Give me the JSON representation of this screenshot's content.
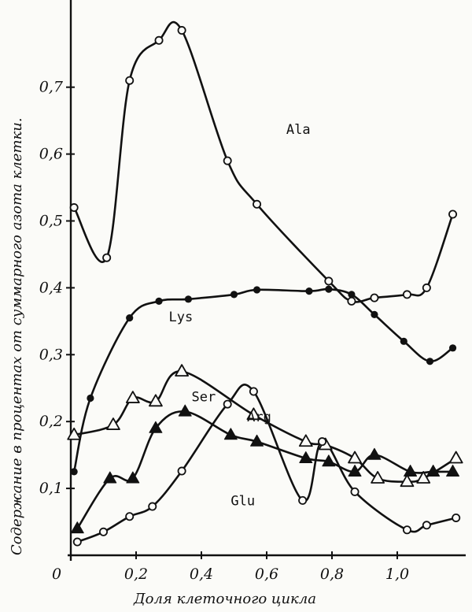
{
  "chart_data": {
    "type": "scatter",
    "xlabel": "Доля клеточного цикла",
    "ylabel": "Содержание в процентах от суммарного азота клетки.",
    "xlim": [
      0,
      1.2
    ],
    "ylim": [
      0,
      0.8
    ],
    "x_ticks": [
      {
        "value": 0,
        "label": "0"
      },
      {
        "value": 0.2,
        "label": "0,2"
      },
      {
        "value": 0.4,
        "label": "0,4"
      },
      {
        "value": 0.6,
        "label": "0,6"
      },
      {
        "value": 0.8,
        "label": "0,8"
      },
      {
        "value": 1.0,
        "label": "1,0"
      }
    ],
    "y_ticks": [
      {
        "value": 0.1,
        "label": "0,1"
      },
      {
        "value": 0.2,
        "label": "0,2"
      },
      {
        "value": 0.3,
        "label": "0,3"
      },
      {
        "value": 0.4,
        "label": "0,4"
      },
      {
        "value": 0.5,
        "label": "0,5"
      },
      {
        "value": 0.6,
        "label": "0,6"
      },
      {
        "value": 0.7,
        "label": "0,7"
      }
    ],
    "series": [
      {
        "name": "Ala",
        "marker": "open-circle",
        "x": [
          0.01,
          0.11,
          0.18,
          0.27,
          0.34,
          0.48,
          0.57,
          0.79,
          0.86,
          0.93,
          1.03,
          1.09,
          1.17
        ],
        "y": [
          0.52,
          0.445,
          0.71,
          0.77,
          0.785,
          0.59,
          0.525,
          0.41,
          0.38,
          0.385,
          0.39,
          0.4,
          0.51
        ],
        "label_at": [
          0.66,
          0.63
        ]
      },
      {
        "name": "Lys",
        "marker": "filled-circle",
        "x": [
          0.01,
          0.06,
          0.18,
          0.27,
          0.36,
          0.5,
          0.57,
          0.73,
          0.79,
          0.86,
          0.93,
          1.02,
          1.1,
          1.17
        ],
        "y": [
          0.125,
          0.235,
          0.355,
          0.38,
          0.383,
          0.39,
          0.397,
          0.395,
          0.398,
          0.39,
          0.36,
          0.32,
          0.29,
          0.31
        ],
        "label_at": [
          0.3,
          0.35
        ]
      },
      {
        "name": "Ser",
        "marker": "open-triangle",
        "x": [
          0.01,
          0.13,
          0.19,
          0.26,
          0.34,
          0.56,
          0.72,
          0.78,
          0.87,
          0.94,
          1.03,
          1.08,
          1.18
        ],
        "y": [
          0.18,
          0.195,
          0.235,
          0.23,
          0.275,
          0.21,
          0.17,
          0.165,
          0.145,
          0.115,
          0.11,
          0.115,
          0.145
        ],
        "label_at": [
          0.37,
          0.23
        ]
      },
      {
        "name": "Arg",
        "marker": "filled-triangle",
        "x": [
          0.02,
          0.12,
          0.19,
          0.26,
          0.35,
          0.49,
          0.57,
          0.72,
          0.79,
          0.87,
          0.93,
          1.04,
          1.11,
          1.17
        ],
        "y": [
          0.04,
          0.115,
          0.115,
          0.19,
          0.215,
          0.18,
          0.17,
          0.145,
          0.14,
          0.125,
          0.15,
          0.125,
          0.125,
          0.125
        ],
        "label_at": [
          0.54,
          0.2
        ]
      },
      {
        "name": "Glu",
        "marker": "open-circle",
        "x": [
          0.02,
          0.1,
          0.18,
          0.25,
          0.34,
          0.48,
          0.56,
          0.71,
          0.77,
          0.87,
          1.03,
          1.09,
          1.18
        ],
        "y": [
          0.02,
          0.035,
          0.058,
          0.073,
          0.126,
          0.226,
          0.245,
          0.082,
          0.17,
          0.095,
          0.038,
          0.045,
          0.056
        ],
        "label_at": [
          0.49,
          0.075
        ]
      }
    ]
  }
}
